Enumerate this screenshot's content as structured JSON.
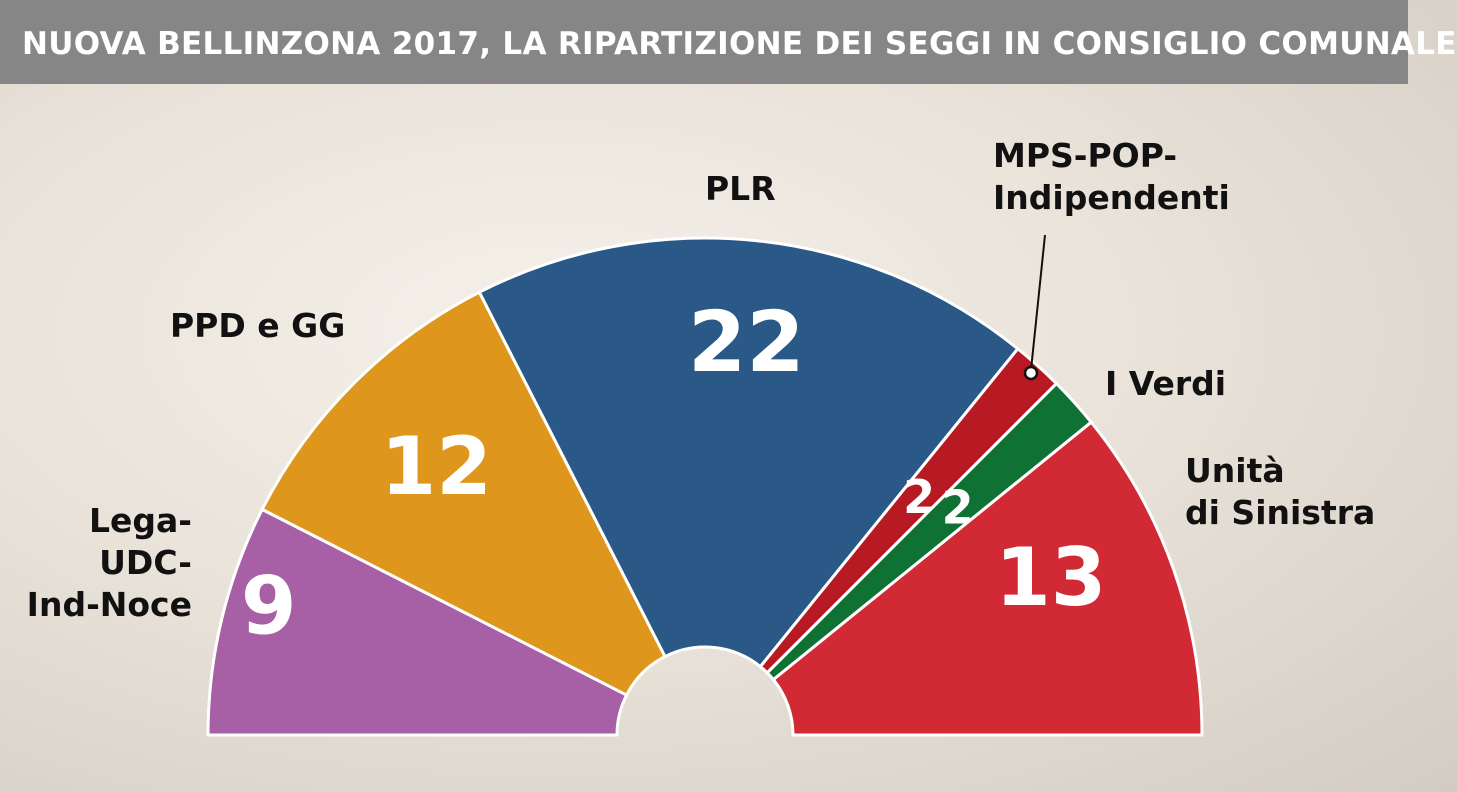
{
  "header": {
    "title": "NUOVA BELLINZONA 2017, LA RIPARTIZIONE DEI SEGGI IN CONSIGLIO COMUNALE"
  },
  "chart_data": {
    "type": "pie",
    "variant": "semicircle-parliament",
    "title": "NUOVA BELLINZONA 2017, LA RIPARTIZIONE DEI SEGGI IN CONSIGLIO COMUNALE",
    "total_seats": 60,
    "series": [
      {
        "name": "Lega-UDC-Ind-Noce",
        "label_lines": [
          "Lega-",
          "UDC-",
          "Ind-Noce"
        ],
        "value": 9,
        "color": "#a75fa5"
      },
      {
        "name": "PPD e GG",
        "label_lines": [
          "PPD e GG"
        ],
        "value": 12,
        "color": "#de971c"
      },
      {
        "name": "PLR",
        "label_lines": [
          "PLR"
        ],
        "value": 22,
        "color": "#2a5887"
      },
      {
        "name": "MPS-POP-Indipendenti",
        "label_lines": [
          "MPS-POP-",
          "Indipendenti"
        ],
        "value": 2,
        "color": "#b71a22"
      },
      {
        "name": "I Verdi",
        "label_lines": [
          "I Verdi"
        ],
        "value": 2,
        "color": "#0f7134"
      },
      {
        "name": "Unità di Sinistra",
        "label_lines": [
          "Unità",
          "di Sinistra"
        ],
        "value": 13,
        "color": "#d12a34"
      }
    ]
  }
}
